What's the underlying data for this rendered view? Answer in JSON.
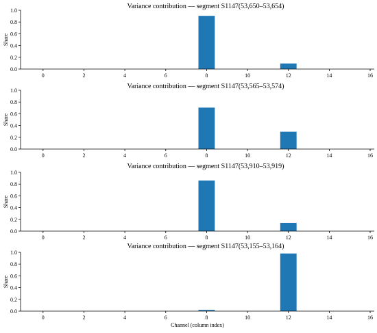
{
  "chart_data": [
    {
      "type": "bar",
      "title": "Variance contribution — segment S1147(53,650–53,654)",
      "ylabel": "Share",
      "xlabel": "",
      "x": [
        0,
        1,
        2,
        3,
        4,
        5,
        6,
        7,
        8,
        9,
        10,
        11,
        12,
        13,
        14,
        15,
        16
      ],
      "values": [
        0,
        0,
        0,
        0,
        0,
        0,
        0,
        0,
        0.905,
        0,
        0,
        0,
        0.095,
        0,
        0,
        0,
        0
      ],
      "ylim": [
        0,
        1.0
      ],
      "xlim": [
        -1.1,
        16.2
      ],
      "yticks": [
        "0.0",
        "0.2",
        "0.4",
        "0.6",
        "0.8",
        "1.0"
      ],
      "xticks": [
        "0",
        "2",
        "4",
        "6",
        "8",
        "10",
        "12",
        "14",
        "16"
      ],
      "bar_color": "#1f77b4",
      "grid": false
    },
    {
      "type": "bar",
      "title": "Variance contribution — segment S1147(53,565–53,574)",
      "ylabel": "Share",
      "xlabel": "",
      "x": [
        0,
        1,
        2,
        3,
        4,
        5,
        6,
        7,
        8,
        9,
        10,
        11,
        12,
        13,
        14,
        15,
        16
      ],
      "values": [
        0,
        0,
        0,
        0,
        0,
        0,
        0,
        0,
        0.705,
        0,
        0,
        0,
        0.295,
        0,
        0,
        0,
        0
      ],
      "ylim": [
        0,
        1.0
      ],
      "xlim": [
        -1.1,
        16.2
      ],
      "yticks": [
        "0.0",
        "0.2",
        "0.4",
        "0.6",
        "0.8",
        "1.0"
      ],
      "xticks": [
        "0",
        "2",
        "4",
        "6",
        "8",
        "10",
        "12",
        "14",
        "16"
      ],
      "bar_color": "#1f77b4",
      "grid": false
    },
    {
      "type": "bar",
      "title": "Variance contribution — segment S1147(53,910–53,919)",
      "ylabel": "Share",
      "xlabel": "",
      "x": [
        0,
        1,
        2,
        3,
        4,
        5,
        6,
        7,
        8,
        9,
        10,
        11,
        12,
        13,
        14,
        15,
        16
      ],
      "values": [
        0,
        0,
        0,
        0,
        0,
        0,
        0,
        0,
        0.86,
        0,
        0,
        0,
        0.14,
        0,
        0,
        0,
        0
      ],
      "ylim": [
        0,
        1.0
      ],
      "xlim": [
        -1.1,
        16.2
      ],
      "yticks": [
        "0.0",
        "0.2",
        "0.4",
        "0.6",
        "0.8",
        "1.0"
      ],
      "xticks": [
        "0",
        "2",
        "4",
        "6",
        "8",
        "10",
        "12",
        "14",
        "16"
      ],
      "bar_color": "#1f77b4",
      "grid": false
    },
    {
      "type": "bar",
      "title": "Variance contribution — segment S1147(53,155–53,164)",
      "ylabel": "Share",
      "xlabel": "Channel (column index)",
      "x": [
        0,
        1,
        2,
        3,
        4,
        5,
        6,
        7,
        8,
        9,
        10,
        11,
        12,
        13,
        14,
        15,
        16
      ],
      "values": [
        0,
        0,
        0,
        0,
        0,
        0,
        0,
        0,
        0.02,
        0,
        0,
        0,
        0.98,
        0,
        0,
        0,
        0
      ],
      "ylim": [
        0,
        1.0
      ],
      "xlim": [
        -1.1,
        16.2
      ],
      "yticks": [
        "0.0",
        "0.2",
        "0.4",
        "0.6",
        "0.8",
        "1.0"
      ],
      "xticks": [
        "0",
        "2",
        "4",
        "6",
        "8",
        "10",
        "12",
        "14",
        "16"
      ],
      "bar_color": "#1f77b4",
      "grid": false
    }
  ]
}
